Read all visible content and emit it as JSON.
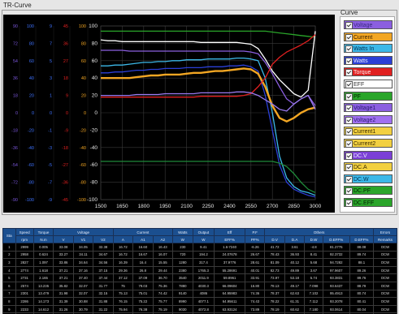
{
  "window": {
    "title": "TR-Curve"
  },
  "legend": {
    "title": "Curve",
    "items": [
      {
        "label": "Voltage",
        "color": "#8b5fe0",
        "text": "#3a2a80"
      },
      {
        "label": "Current",
        "color": "#f2a623",
        "text": "#3a2000"
      },
      {
        "label": "Watts In",
        "color": "#3cb8e8",
        "text": "#003050"
      },
      {
        "label": "Watts",
        "color": "#2b3fd6",
        "text": "#f0f0ff"
      },
      {
        "label": "Torque",
        "color": "#e02020",
        "text": "#fff0f0"
      },
      {
        "label": "EFF",
        "color": "#ffffff",
        "text": "#333333"
      },
      {
        "label": "PF",
        "color": "#2aa52a",
        "text": "#002000"
      },
      {
        "label": "Voltage1",
        "color": "#8b5fe0",
        "text": "#2a1a70"
      },
      {
        "label": "Voltage2",
        "color": "#a070f0",
        "text": "#2a1a70"
      },
      {
        "label": "Current1",
        "color": "#f2d040",
        "text": "#3a2a00"
      },
      {
        "label": "Current2",
        "color": "#f2d040",
        "text": "#3a2a00"
      },
      {
        "label": "DC.V",
        "color": "#7b3fd6",
        "text": "#f0f0ff"
      },
      {
        "label": "DC.A",
        "color": "#f2d040",
        "text": "#3a2a00"
      },
      {
        "label": "DC.W",
        "color": "#3cb8e8",
        "text": "#003050"
      },
      {
        "label": "DC.PF",
        "color": "#2aa52a",
        "text": "#002000"
      },
      {
        "label": "DC.EFF",
        "color": "#2aa52a",
        "text": "#002000"
      }
    ]
  },
  "chart_data": {
    "type": "line",
    "x": [
      1500,
      1550,
      1600,
      1650,
      1700,
      1750,
      1800,
      1850,
      1900,
      1950,
      2000,
      2050,
      2100,
      2150,
      2200,
      2250,
      2300,
      2350,
      2400,
      2450,
      2500,
      2550,
      2600,
      2650,
      2700,
      2750,
      2800,
      2850,
      2900,
      2950,
      3000
    ],
    "x_ticks": [
      "1500",
      "1650",
      "1800",
      "1950",
      "2100",
      "2250",
      "2400",
      "2550",
      "2700",
      "2850",
      "3000"
    ],
    "xlim": [
      1500,
      3000
    ],
    "y_ticks": [
      "100",
      "80",
      "60",
      "40",
      "20",
      "0",
      "-20",
      "-40",
      "-60",
      "-80",
      "-100"
    ],
    "ylim": [
      -100,
      100
    ],
    "side_axes": [
      {
        "color": "#7a56d8",
        "ticks": [
          "90",
          "72",
          "54",
          "36",
          "18",
          "0",
          "-18",
          "-36",
          "-54",
          "-72",
          "-90"
        ]
      },
      {
        "color": "#3f73ff",
        "ticks": [
          "100",
          "80",
          "60",
          "40",
          "20",
          "0",
          "-20",
          "-40",
          "-60",
          "-80",
          "-100"
        ]
      },
      {
        "color": "#3f73ff",
        "ticks": [
          "9",
          "7",
          "5",
          "3",
          "1",
          "0",
          "-1",
          "-3",
          "-5",
          "-7",
          "-9"
        ]
      },
      {
        "color": "#e02020",
        "ticks": [
          "45",
          "36",
          "27",
          "18",
          "9",
          "0",
          "-9",
          "-18",
          "-27",
          "-36",
          "-45"
        ]
      },
      {
        "color": "#f2a623",
        "ticks": [
          "100",
          "80",
          "60",
          "40",
          "20",
          "0",
          "-20",
          "-40",
          "-60",
          "-80",
          "-100"
        ]
      }
    ],
    "series": [
      {
        "color": "#2aa52a",
        "values": [
          94,
          94,
          94,
          94,
          94,
          94,
          94,
          94,
          94,
          94,
          94,
          94,
          94,
          94,
          94,
          94,
          94,
          94,
          94,
          94,
          94,
          94,
          94,
          94,
          93,
          92,
          91,
          90,
          89,
          88,
          87
        ]
      },
      {
        "color": "#ffffff",
        "values": [
          84,
          83,
          83,
          82,
          82,
          82,
          82,
          82,
          82,
          82,
          82,
          82,
          82,
          82,
          81,
          81,
          81,
          81,
          81,
          81,
          80,
          79,
          74,
          62,
          48,
          38,
          30,
          22,
          18,
          26,
          94
        ]
      },
      {
        "color": "#8b5fe0",
        "values": [
          72,
          72,
          72,
          72,
          71,
          71,
          71,
          71,
          71,
          71,
          71,
          71,
          71,
          71,
          71,
          71,
          71,
          71,
          71,
          71,
          71,
          70,
          68,
          58,
          45,
          30,
          16,
          10,
          16,
          20,
          8
        ]
      },
      {
        "color": "#3cb8e8",
        "values": [
          54,
          54,
          55,
          55,
          56,
          57,
          58,
          58,
          59,
          59,
          60,
          60,
          61,
          61,
          61,
          62,
          62,
          62,
          62,
          63,
          63,
          62,
          60,
          40,
          0,
          -50,
          -75,
          -85,
          -90,
          -92,
          -95
        ]
      },
      {
        "color": "#2b3fd6",
        "values": [
          46,
          46,
          47,
          47,
          48,
          49,
          49,
          50,
          50,
          51,
          51,
          51,
          52,
          52,
          52,
          53,
          53,
          53,
          54,
          54,
          55,
          53,
          48,
          20,
          -20,
          -60,
          -80,
          -88,
          -92,
          -95,
          -97
        ]
      },
      {
        "color": "#f2a623",
        "values": [
          40,
          40,
          40,
          40,
          40,
          41,
          42,
          43,
          43,
          44,
          44,
          44,
          45,
          46,
          46,
          47,
          48,
          48,
          49,
          50,
          51,
          50,
          45,
          30,
          8,
          -6,
          -10,
          -6,
          0,
          4,
          6
        ]
      },
      {
        "color": "#e02020",
        "values": [
          18,
          18,
          18,
          18,
          18,
          18,
          18,
          18,
          18,
          18,
          18,
          18,
          18,
          18,
          19,
          19,
          19,
          19,
          19,
          19,
          20,
          22,
          30,
          40,
          56,
          64,
          70,
          74,
          78,
          83,
          90
        ]
      },
      {
        "color": "#9a7af0",
        "values": [
          20,
          20,
          20,
          20,
          20,
          21,
          21,
          21,
          21,
          22,
          22,
          22,
          22,
          22,
          23,
          23,
          23,
          23,
          23,
          24,
          24,
          23,
          20,
          15,
          10,
          4,
          2,
          10,
          16,
          20,
          4
        ]
      },
      {
        "color": "#1f8a3a",
        "values": [
          -56,
          -56,
          -56,
          -56,
          -56,
          -56,
          -56,
          -56,
          -56,
          -56,
          -56,
          -56,
          -56,
          -56,
          -56,
          -56,
          -56,
          -56,
          -56,
          -56,
          -56,
          -56,
          -56,
          -56,
          -56,
          -58,
          -62,
          -70,
          -80,
          -88,
          -92
        ]
      }
    ]
  },
  "table": {
    "group_headers": [
      "Sta",
      "Speed",
      "Torque",
      "Voltage",
      "",
      "",
      "Current",
      "",
      "",
      "Watts",
      "Output",
      "Eff",
      "P.F",
      "Others",
      "",
      "",
      "",
      "",
      "",
      "Errors"
    ],
    "sub_headers": [
      "",
      "rpm",
      "N.m",
      "V",
      "V1",
      "V2",
      "A",
      "A1",
      "A2",
      "W",
      "W",
      "EFF%",
      "PF%",
      "D.V",
      "D.A",
      "D.W",
      "D.EFF%",
      "D.EFF%",
      "Remarks"
    ],
    "rows": [
      [
        "1",
        "2999",
        "0.005",
        "33.08",
        "34.05",
        "32.38",
        "16.72",
        "16.60",
        "16.43",
        "230",
        "9.41",
        "1.6-7240",
        "-6.26",
        "41.72",
        "3.61",
        "-4.8",
        "81.2776",
        "88.08",
        "OCW"
      ],
      [
        "2",
        "2958",
        "0.624",
        "33.27",
        "34.11",
        "34.67",
        "16.72",
        "16.67",
        "16.07",
        "720",
        "194.2",
        "24.07678",
        "26.67",
        "78.43",
        "36.93",
        "8.41",
        "92.3732",
        "89.74",
        "OCW"
      ],
      [
        "3",
        "2827",
        "1.097",
        "33.86",
        "34.64",
        "34.56",
        "16.39",
        "16.4",
        "15.55",
        "1280",
        "317.4",
        "37.9776",
        "28.61",
        "81.09",
        "40.12",
        "5.68",
        "94.7282",
        "88.1",
        "OCW"
      ],
      [
        "4",
        "2774",
        "1.618",
        "37.21",
        "37.16",
        "37.15",
        "29.36",
        "26.8",
        "29.44",
        "2380",
        "1765.3",
        "55.28691",
        "40.01",
        "82.73",
        "49.89",
        "3.67",
        "97.9607",
        "89.26",
        "OCW"
      ],
      [
        "5",
        "2731",
        "2.165",
        "37.21",
        "37.40",
        "37.44",
        "37.12",
        "37.09",
        "36.70",
        "3540",
        "2011.9",
        "59.8961",
        "33.91",
        "73.97",
        "53.18",
        "5.74",
        "93.3831",
        "89.76",
        "OCW"
      ],
      [
        "6",
        "2574",
        "13.235",
        "35.82",
        "32.07",
        "31.77",
        "75",
        "79.03",
        "75.36",
        "7880",
        "4030.3",
        "66.09604",
        "16.80",
        "78.13",
        "49.17",
        "7.098",
        "93.6437",
        "88.79",
        "OCW"
      ],
      [
        "7",
        "2301",
        "13.479",
        "31.98",
        "32.07",
        "32.15",
        "75.13",
        "75.01",
        "74.42",
        "9140",
        "4086",
        "64.95983",
        "74.36",
        "78.37",
        "62.63",
        "7.102",
        "95.4913",
        "80.74",
        "OCW"
      ],
      [
        "8",
        "2286",
        "14.173",
        "31.39",
        "30.88",
        "31.88",
        "76.15",
        "75.22",
        "75.77",
        "8990",
        "4077.1",
        "64.95611",
        "74.43",
        "78.22",
        "61.31",
        "7.112",
        "93.2078",
        "80.41",
        "OCW"
      ],
      [
        "9",
        "2233",
        "14.612",
        "31.26",
        "30.79",
        "31.22",
        "75.94",
        "76.38",
        "75.19",
        "9030",
        "4072.8",
        "63.93124",
        "73.89",
        "78.19",
        "60.62",
        "7.180",
        "93.0614",
        "80.04",
        "OCW"
      ],
      [
        "10",
        "2189",
        "14.820",
        "30.79",
        "30.65",
        "30.97",
        "76.40",
        "76.06",
        "75.39",
        "9080",
        "4041.5",
        "63.36822",
        "73.72",
        "77.84",
        "60.44",
        "7.174",
        "92.8115",
        "79.64",
        "OCW"
      ]
    ]
  }
}
